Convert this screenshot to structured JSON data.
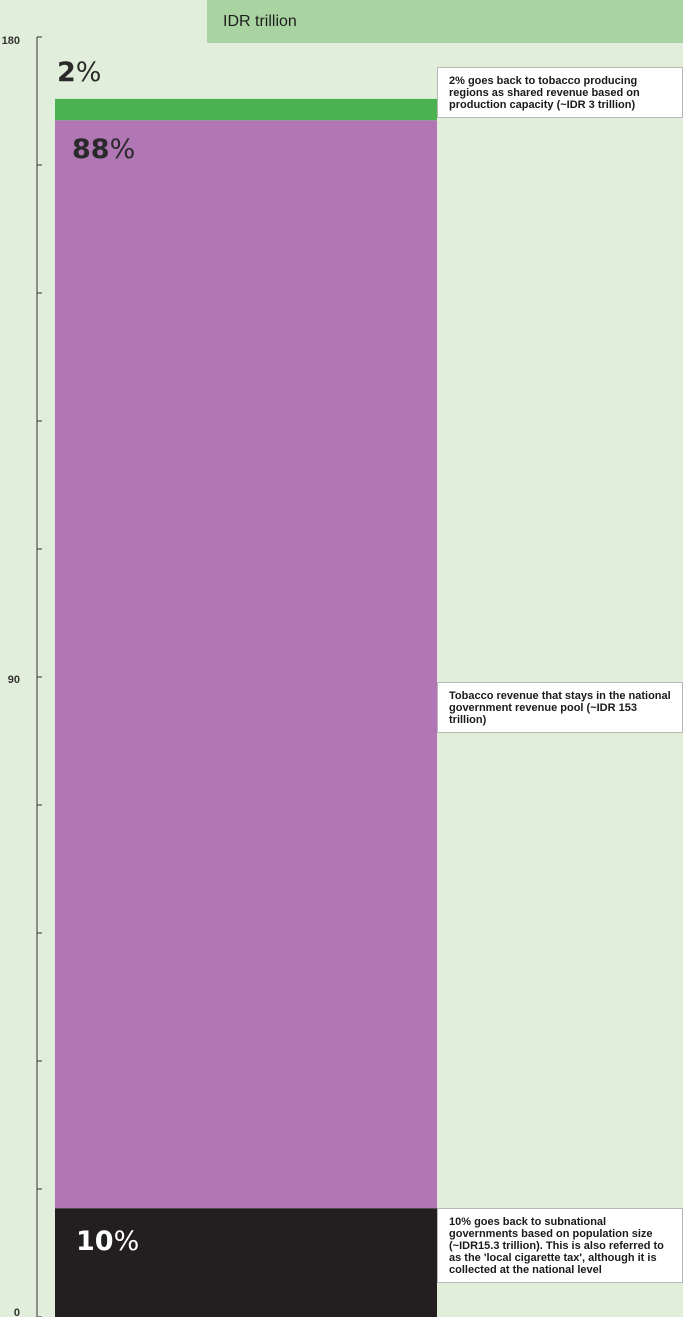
{
  "colors": {
    "background": "#e2eedc",
    "banner": "#a9d3a0",
    "axis": "#333333",
    "national": "#b077b4",
    "producing": "#4cb24f",
    "subnational": "#231f20"
  },
  "chart_data": {
    "type": "bar",
    "stacked": true,
    "unit_label": "IDR trillion",
    "ylim": [
      0,
      180
    ],
    "yticks": [
      0,
      90,
      180
    ],
    "minor_tick_step": 18,
    "grid": false,
    "total": 171.3,
    "segments": [
      {
        "id": "subnational",
        "value": 15.3,
        "share_number": "10",
        "share_symbol": "%",
        "annotation": "10% goes back to subnational governments based on population size (~IDR15.3 trillion). This is also referred to as the 'local cigarette tax', although it is collected at the national level"
      },
      {
        "id": "national",
        "value": 153,
        "share_number": "88",
        "share_symbol": "%",
        "annotation": "Tobacco revenue that stays in the national government revenue pool (~IDR 153 trillion)"
      },
      {
        "id": "producing",
        "value": 3,
        "share_number": "2",
        "share_symbol": "%",
        "annotation": "2% goes back to tobacco producing regions as shared revenue based on production capacity (~IDR 3 trillion)"
      }
    ]
  }
}
